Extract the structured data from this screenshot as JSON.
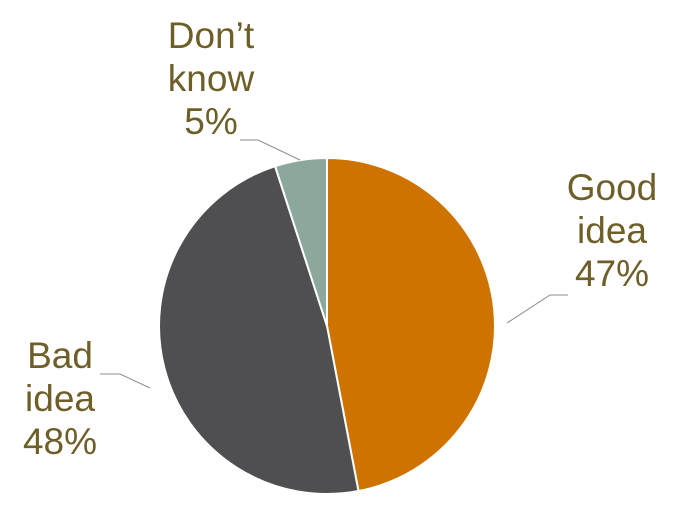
{
  "chart_data": {
    "type": "pie",
    "title": "",
    "start_angle_deg": 0,
    "direction": "clockwise",
    "slices": [
      {
        "label_lines": [
          "Good",
          "idea"
        ],
        "value": 47,
        "value_label": "47%",
        "color": "#CE7300"
      },
      {
        "label_lines": [
          "Bad",
          "idea"
        ],
        "value": 48,
        "value_label": "48%",
        "color": "#4F4F52"
      },
      {
        "label_lines": [
          "Don’t",
          "know"
        ],
        "value": 5,
        "value_label": "5%",
        "color": "#8CA89C"
      }
    ],
    "label_color": "#6E5E28",
    "leader_line_color": "#8C8C8C",
    "slice_border_color": "#ffffff"
  }
}
